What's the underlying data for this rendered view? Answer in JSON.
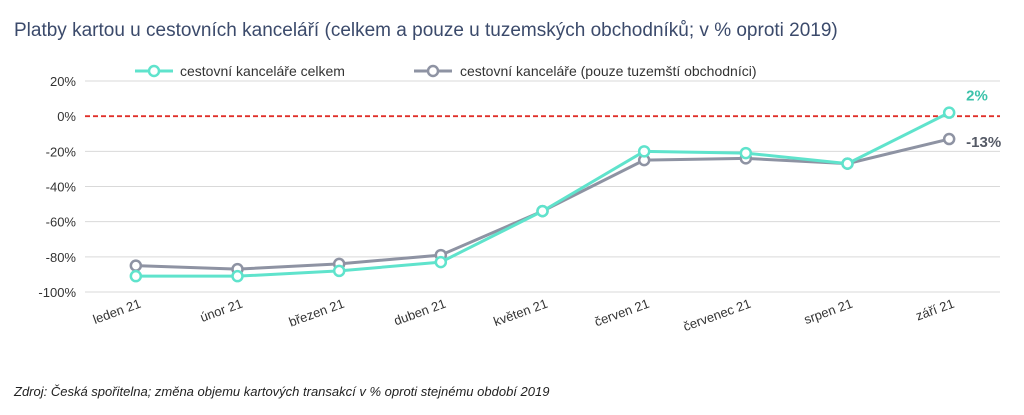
{
  "title": "Platby kartou u cestovních kanceláří (celkem a pouze u tuzemských obchodníků; v % oproti 2019)",
  "source": "Zdroj: Česká spořitelna; změna objemu kartových transakcí v % oproti stejnému období 2019",
  "colors": {
    "series1": "#5fe3cc",
    "series2": "#8e93a3",
    "reference": "#e0302a",
    "grid": "#d9d9d9"
  },
  "chart_data": {
    "type": "line",
    "title": "Platby kartou u cestovních kanceláří (celkem a pouze u tuzemských obchodníků; v % oproti 2019)",
    "categories": [
      "leden 21",
      "únor 21",
      "březen 21",
      "duben 21",
      "květen 21",
      "červen 21",
      "červenec 21",
      "srpen 21",
      "září 21"
    ],
    "series": [
      {
        "name": "cestovní kanceláře celkem",
        "values": [
          -91,
          -91,
          -88,
          -83,
          -54,
          -20,
          -21,
          -27,
          2
        ]
      },
      {
        "name": "cestovní kanceláře (pouze tuzemští obchodníci)",
        "values": [
          -85,
          -87,
          -84,
          -79,
          -54,
          -25,
          -24,
          -27,
          -13
        ]
      }
    ],
    "yticks": [
      "20%",
      "0%",
      "-20%",
      "-40%",
      "-60%",
      "-80%",
      "-100%"
    ],
    "ytick_values": [
      20,
      0,
      -20,
      -40,
      -60,
      -80,
      -100
    ],
    "ylim": [
      -100,
      20
    ],
    "reference_line": 0,
    "end_labels": [
      "2%",
      "-13%"
    ],
    "legend_position": "top",
    "grid": true
  }
}
